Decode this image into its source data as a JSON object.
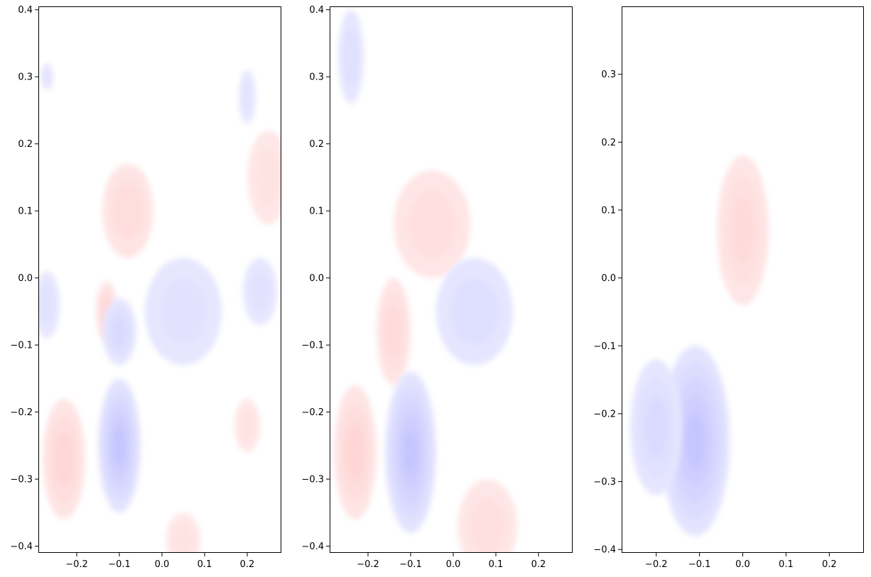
{
  "chart_data": [
    {
      "type": "contour",
      "xlim": [
        -0.29,
        0.28
      ],
      "ylim": [
        -0.41,
        0.405
      ],
      "xticks": [
        -0.2,
        -0.1,
        0.0,
        0.1,
        0.2
      ],
      "xtick_labels": [
        "−0.2",
        "−0.1",
        "0.0",
        "0.1",
        "0.2"
      ],
      "yticks": [
        -0.4,
        -0.3,
        -0.2,
        -0.1,
        0.0,
        0.1,
        0.2,
        0.3,
        0.4
      ],
      "ytick_labels": [
        "−0.4",
        "−0.3",
        "−0.2",
        "−0.1",
        "0.0",
        "0.1",
        "0.2",
        "0.3",
        "0.4"
      ],
      "colormap": "bwr",
      "colors": {
        "positive": "#ff0000",
        "negative": "#0000ff"
      },
      "features": [
        {
          "cx": -0.23,
          "cy": -0.27,
          "rx": 0.05,
          "ry": 0.09,
          "level": 0.16
        },
        {
          "cx": -0.13,
          "cy": -0.05,
          "rx": 0.025,
          "ry": 0.045,
          "level": 0.16
        },
        {
          "cx": -0.08,
          "cy": 0.1,
          "rx": 0.06,
          "ry": 0.07,
          "level": 0.11
        },
        {
          "cx": -0.1,
          "cy": -0.25,
          "rx": 0.05,
          "ry": 0.1,
          "level": -0.3
        },
        {
          "cx": -0.1,
          "cy": -0.08,
          "rx": 0.04,
          "ry": 0.05,
          "level": -0.14
        },
        {
          "cx": 0.05,
          "cy": -0.05,
          "rx": 0.09,
          "ry": 0.08,
          "level": -0.07
        },
        {
          "cx": -0.27,
          "cy": -0.04,
          "rx": 0.03,
          "ry": 0.05,
          "level": -0.07
        },
        {
          "cx": 0.23,
          "cy": -0.02,
          "rx": 0.04,
          "ry": 0.05,
          "level": -0.07
        },
        {
          "cx": 0.2,
          "cy": -0.22,
          "rx": 0.03,
          "ry": 0.04,
          "level": 0.06
        },
        {
          "cx": 0.25,
          "cy": 0.15,
          "rx": 0.05,
          "ry": 0.07,
          "level": 0.06
        },
        {
          "cx": 0.2,
          "cy": 0.27,
          "rx": 0.02,
          "ry": 0.04,
          "level": -0.06
        },
        {
          "cx": -0.27,
          "cy": 0.3,
          "rx": 0.015,
          "ry": 0.02,
          "level": -0.06
        },
        {
          "cx": 0.05,
          "cy": -0.39,
          "rx": 0.04,
          "ry": 0.04,
          "level": 0.06
        }
      ]
    },
    {
      "type": "contour",
      "xlim": [
        -0.29,
        0.28
      ],
      "ylim": [
        -0.41,
        0.405
      ],
      "xticks": [
        -0.2,
        -0.1,
        0.0,
        0.1,
        0.2
      ],
      "xtick_labels": [
        "−0.2",
        "−0.1",
        "0.0",
        "0.1",
        "0.2"
      ],
      "yticks": [
        -0.4,
        -0.3,
        -0.2,
        -0.1,
        0.0,
        0.1,
        0.2,
        0.3,
        0.4
      ],
      "ytick_labels": [
        "−0.4",
        "−0.3",
        "−0.2",
        "−0.1",
        "0.0",
        "0.1",
        "0.2",
        "0.3",
        "0.4"
      ],
      "colormap": "bwr",
      "colors": {
        "positive": "#ff0000",
        "negative": "#0000ff"
      },
      "features": [
        {
          "cx": -0.23,
          "cy": -0.26,
          "rx": 0.05,
          "ry": 0.1,
          "level": 0.12
        },
        {
          "cx": -0.14,
          "cy": -0.08,
          "rx": 0.04,
          "ry": 0.08,
          "level": 0.1
        },
        {
          "cx": -0.05,
          "cy": 0.08,
          "rx": 0.09,
          "ry": 0.08,
          "level": 0.07
        },
        {
          "cx": -0.1,
          "cy": -0.26,
          "rx": 0.06,
          "ry": 0.12,
          "level": -0.22
        },
        {
          "cx": 0.05,
          "cy": -0.05,
          "rx": 0.09,
          "ry": 0.08,
          "level": -0.07
        },
        {
          "cx": -0.24,
          "cy": 0.33,
          "rx": 0.03,
          "ry": 0.07,
          "level": -0.06
        },
        {
          "cx": 0.08,
          "cy": -0.37,
          "rx": 0.07,
          "ry": 0.07,
          "level": 0.06
        }
      ]
    },
    {
      "type": "contour",
      "xlim": [
        -0.28,
        0.28
      ],
      "ylim": [
        -0.405,
        0.4
      ],
      "xticks": [
        -0.2,
        -0.1,
        0.0,
        0.1,
        0.2
      ],
      "xtick_labels": [
        "−0.2",
        "−0.1",
        "0.0",
        "0.1",
        "0.2"
      ],
      "yticks": [
        -0.4,
        -0.3,
        -0.2,
        -0.1,
        0.0,
        0.1,
        0.2,
        0.3
      ],
      "ytick_labels": [
        "−0.4",
        "−0.3",
        "−0.2",
        "−0.1",
        "0.0",
        "0.1",
        "0.2",
        "0.3"
      ],
      "colormap": "bwr",
      "colors": {
        "positive": "#ff0000",
        "negative": "#0000ff"
      },
      "features": [
        {
          "cx": 0.0,
          "cy": 0.07,
          "rx": 0.06,
          "ry": 0.11,
          "level": 0.07
        },
        {
          "cx": -0.11,
          "cy": -0.24,
          "rx": 0.08,
          "ry": 0.14,
          "level": -0.16
        },
        {
          "cx": -0.2,
          "cy": -0.22,
          "rx": 0.06,
          "ry": 0.1,
          "level": -0.07
        }
      ]
    }
  ]
}
